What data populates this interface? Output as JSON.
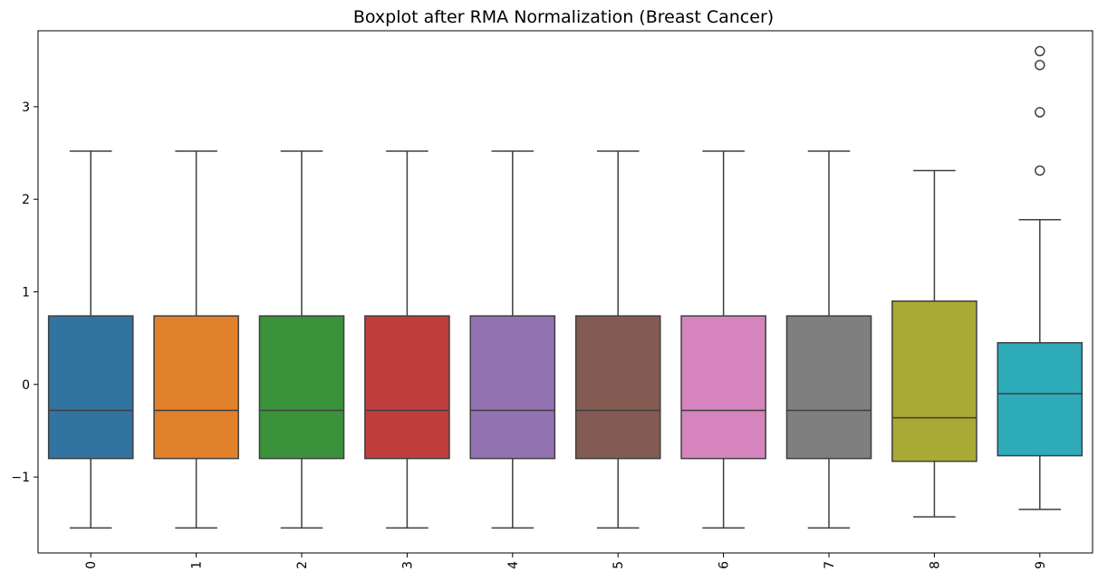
{
  "chart_data": {
    "type": "box",
    "title": "Boxplot after RMA Normalization (Breast Cancer)",
    "xlabel": "",
    "ylabel": "",
    "categories": [
      "0",
      "1",
      "2",
      "3",
      "4",
      "5",
      "6",
      "7",
      "8",
      "9"
    ],
    "ylim": [
      -1.82,
      3.82
    ],
    "yticks": [
      -1,
      0,
      1,
      2,
      3
    ],
    "ytick_labels": [
      "−1",
      "0",
      "1",
      "2",
      "3"
    ],
    "grid": false,
    "legend": false,
    "boxes": [
      {
        "category": "0",
        "whisker_low": -1.55,
        "q1": -0.8,
        "median": -0.28,
        "q3": 0.74,
        "whisker_high": 2.52,
        "outliers": [],
        "color": "#3274a1"
      },
      {
        "category": "1",
        "whisker_low": -1.55,
        "q1": -0.8,
        "median": -0.28,
        "q3": 0.74,
        "whisker_high": 2.52,
        "outliers": [],
        "color": "#e1812c"
      },
      {
        "category": "2",
        "whisker_low": -1.55,
        "q1": -0.8,
        "median": -0.28,
        "q3": 0.74,
        "whisker_high": 2.52,
        "outliers": [],
        "color": "#3a923a"
      },
      {
        "category": "3",
        "whisker_low": -1.55,
        "q1": -0.8,
        "median": -0.28,
        "q3": 0.74,
        "whisker_high": 2.52,
        "outliers": [],
        "color": "#c03d3e"
      },
      {
        "category": "4",
        "whisker_low": -1.55,
        "q1": -0.8,
        "median": -0.28,
        "q3": 0.74,
        "whisker_high": 2.52,
        "outliers": [],
        "color": "#9372b2"
      },
      {
        "category": "5",
        "whisker_low": -1.55,
        "q1": -0.8,
        "median": -0.28,
        "q3": 0.74,
        "whisker_high": 2.52,
        "outliers": [],
        "color": "#845b53"
      },
      {
        "category": "6",
        "whisker_low": -1.55,
        "q1": -0.8,
        "median": -0.28,
        "q3": 0.74,
        "whisker_high": 2.52,
        "outliers": [],
        "color": "#d684bd"
      },
      {
        "category": "7",
        "whisker_low": -1.55,
        "q1": -0.8,
        "median": -0.28,
        "q3": 0.74,
        "whisker_high": 2.52,
        "outliers": [],
        "color": "#7f7f7f"
      },
      {
        "category": "8",
        "whisker_low": -1.43,
        "q1": -0.83,
        "median": -0.36,
        "q3": 0.9,
        "whisker_high": 2.31,
        "outliers": [],
        "color": "#a9aa35"
      },
      {
        "category": "9",
        "whisker_low": -1.35,
        "q1": -0.77,
        "median": -0.1,
        "q3": 0.45,
        "whisker_high": 1.78,
        "outliers": [
          2.31,
          2.94,
          3.45,
          3.6
        ],
        "color": "#2eabb8"
      }
    ]
  }
}
